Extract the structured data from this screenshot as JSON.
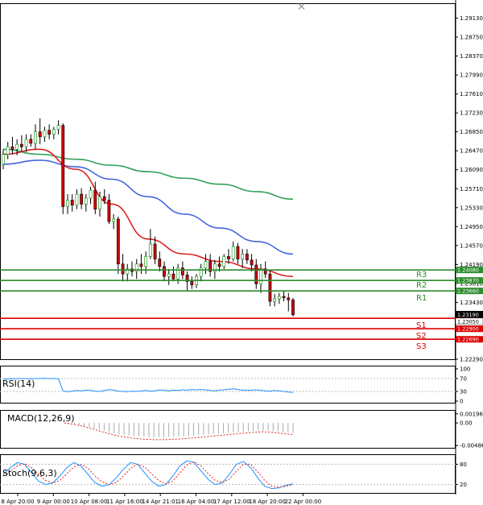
{
  "chart_data": {
    "type": "candlestick",
    "instrument_panel": {
      "price_axis_ticks": [
        "1.29130",
        "1.28750",
        "1.28370",
        "1.27990",
        "1.27610",
        "1.27230",
        "1.26850",
        "1.26470",
        "1.26090",
        "1.25710",
        "1.25330",
        "1.24950",
        "1.24570",
        "1.24190",
        "1.23810",
        "1.23430",
        "1.23050",
        "1.22670",
        "1.22290"
      ],
      "ylim": [
        1.2229,
        1.293
      ],
      "x_tick_labels": [
        "8 Apr 20:00",
        "9 Apr 00:00",
        "10 Apr 08:00",
        "11 Apr 16:00",
        "14 Apr 21:01",
        "16 Apr 04:00",
        "17 Apr 12:00",
        "18 Apr 20:00",
        "22 Apr 00:00"
      ],
      "candles": [
        {
          "o": 1.262,
          "h": 1.265,
          "l": 1.261,
          "c": 1.264
        },
        {
          "o": 1.264,
          "h": 1.2665,
          "l": 1.263,
          "c": 1.2655
        },
        {
          "o": 1.2655,
          "h": 1.2675,
          "l": 1.264,
          "c": 1.265
        },
        {
          "o": 1.265,
          "h": 1.267,
          "l": 1.2638,
          "c": 1.266
        },
        {
          "o": 1.266,
          "h": 1.2678,
          "l": 1.2645,
          "c": 1.2655
        },
        {
          "o": 1.2655,
          "h": 1.268,
          "l": 1.2645,
          "c": 1.267
        },
        {
          "o": 1.267,
          "h": 1.268,
          "l": 1.2655,
          "c": 1.2662
        },
        {
          "o": 1.2662,
          "h": 1.27,
          "l": 1.265,
          "c": 1.2685
        },
        {
          "o": 1.2685,
          "h": 1.2712,
          "l": 1.266,
          "c": 1.2675
        },
        {
          "o": 1.2675,
          "h": 1.2695,
          "l": 1.2665,
          "c": 1.2688
        },
        {
          "o": 1.2688,
          "h": 1.27,
          "l": 1.267,
          "c": 1.268
        },
        {
          "o": 1.268,
          "h": 1.2695,
          "l": 1.267,
          "c": 1.269
        },
        {
          "o": 1.269,
          "h": 1.2708,
          "l": 1.268,
          "c": 1.2698
        },
        {
          "o": 1.2698,
          "h": 1.2702,
          "l": 1.252,
          "c": 1.2535
        },
        {
          "o": 1.2535,
          "h": 1.256,
          "l": 1.252,
          "c": 1.2548
        },
        {
          "o": 1.2548,
          "h": 1.256,
          "l": 1.2525,
          "c": 1.2538
        },
        {
          "o": 1.2538,
          "h": 1.257,
          "l": 1.253,
          "c": 1.256
        },
        {
          "o": 1.256,
          "h": 1.2572,
          "l": 1.253,
          "c": 1.254
        },
        {
          "o": 1.254,
          "h": 1.256,
          "l": 1.2525,
          "c": 1.2552
        },
        {
          "o": 1.2552,
          "h": 1.2575,
          "l": 1.254,
          "c": 1.2568
        },
        {
          "o": 1.2568,
          "h": 1.2585,
          "l": 1.252,
          "c": 1.253
        },
        {
          "o": 1.253,
          "h": 1.2565,
          "l": 1.2515,
          "c": 1.2555
        },
        {
          "o": 1.2555,
          "h": 1.257,
          "l": 1.254,
          "c": 1.2548
        },
        {
          "o": 1.2548,
          "h": 1.256,
          "l": 1.25,
          "c": 1.2505
        },
        {
          "o": 1.2505,
          "h": 1.252,
          "l": 1.249,
          "c": 1.251
        },
        {
          "o": 1.251,
          "h": 1.2515,
          "l": 1.24,
          "c": 1.242
        },
        {
          "o": 1.242,
          "h": 1.244,
          "l": 1.2385,
          "c": 1.24
        },
        {
          "o": 1.24,
          "h": 1.242,
          "l": 1.2385,
          "c": 1.241
        },
        {
          "o": 1.241,
          "h": 1.2425,
          "l": 1.2395,
          "c": 1.2405
        },
        {
          "o": 1.2405,
          "h": 1.243,
          "l": 1.239,
          "c": 1.242
        },
        {
          "o": 1.242,
          "h": 1.244,
          "l": 1.24,
          "c": 1.2415
        },
        {
          "o": 1.2415,
          "h": 1.2445,
          "l": 1.24,
          "c": 1.2435
        },
        {
          "o": 1.2435,
          "h": 1.249,
          "l": 1.243,
          "c": 1.246
        },
        {
          "o": 1.246,
          "h": 1.2475,
          "l": 1.242,
          "c": 1.243
        },
        {
          "o": 1.243,
          "h": 1.2445,
          "l": 1.2405,
          "c": 1.2415
        },
        {
          "o": 1.2415,
          "h": 1.2425,
          "l": 1.2385,
          "c": 1.2395
        },
        {
          "o": 1.2395,
          "h": 1.241,
          "l": 1.2378,
          "c": 1.24
        },
        {
          "o": 1.24,
          "h": 1.2415,
          "l": 1.2385,
          "c": 1.239
        },
        {
          "o": 1.239,
          "h": 1.242,
          "l": 1.238,
          "c": 1.2412
        },
        {
          "o": 1.2412,
          "h": 1.2425,
          "l": 1.239,
          "c": 1.2398
        },
        {
          "o": 1.2398,
          "h": 1.2405,
          "l": 1.2365,
          "c": 1.2385
        },
        {
          "o": 1.2385,
          "h": 1.2395,
          "l": 1.237,
          "c": 1.2378
        },
        {
          "o": 1.2378,
          "h": 1.24,
          "l": 1.2372,
          "c": 1.2395
        },
        {
          "o": 1.2395,
          "h": 1.242,
          "l": 1.2385,
          "c": 1.2412
        },
        {
          "o": 1.2412,
          "h": 1.244,
          "l": 1.24,
          "c": 1.2425
        },
        {
          "o": 1.2425,
          "h": 1.244,
          "l": 1.2395,
          "c": 1.2405
        },
        {
          "o": 1.2405,
          "h": 1.2428,
          "l": 1.239,
          "c": 1.242
        },
        {
          "o": 1.242,
          "h": 1.2435,
          "l": 1.2405,
          "c": 1.2415
        },
        {
          "o": 1.2415,
          "h": 1.244,
          "l": 1.241,
          "c": 1.2435
        },
        {
          "o": 1.2435,
          "h": 1.245,
          "l": 1.242,
          "c": 1.243
        },
        {
          "o": 1.243,
          "h": 1.2465,
          "l": 1.2425,
          "c": 1.2455
        },
        {
          "o": 1.2455,
          "h": 1.2462,
          "l": 1.242,
          "c": 1.243
        },
        {
          "o": 1.243,
          "h": 1.245,
          "l": 1.2412,
          "c": 1.244
        },
        {
          "o": 1.244,
          "h": 1.245,
          "l": 1.242,
          "c": 1.2428
        },
        {
          "o": 1.2428,
          "h": 1.244,
          "l": 1.2405,
          "c": 1.2418
        },
        {
          "o": 1.2418,
          "h": 1.243,
          "l": 1.237,
          "c": 1.238
        },
        {
          "o": 1.238,
          "h": 1.242,
          "l": 1.2362,
          "c": 1.241
        },
        {
          "o": 1.241,
          "h": 1.2425,
          "l": 1.2392,
          "c": 1.24
        },
        {
          "o": 1.24,
          "h": 1.2408,
          "l": 1.2335,
          "c": 1.2345
        },
        {
          "o": 1.2345,
          "h": 1.236,
          "l": 1.2335,
          "c": 1.235
        },
        {
          "o": 1.235,
          "h": 1.2362,
          "l": 1.234,
          "c": 1.2355
        },
        {
          "o": 1.2355,
          "h": 1.2365,
          "l": 1.2345,
          "c": 1.2352
        },
        {
          "o": 1.2352,
          "h": 1.2362,
          "l": 1.2325,
          "c": 1.2348
        },
        {
          "o": 1.2348,
          "h": 1.2352,
          "l": 1.2315,
          "c": 1.2318
        }
      ],
      "ma_slow": {
        "color": "#33a05a",
        "values": [
          1.265,
          1.264,
          1.263,
          1.2618,
          1.2605,
          1.2592,
          1.258,
          1.2565,
          1.255
        ]
      },
      "ma_mid": {
        "color": "#4466dd",
        "values": [
          1.262,
          1.2628,
          1.2615,
          1.259,
          1.2555,
          1.252,
          1.2492,
          1.2465,
          1.244
        ]
      },
      "ma_fast": {
        "color": "#dd2222",
        "values": [
          1.264,
          1.265,
          1.261,
          1.254,
          1.247,
          1.244,
          1.2425,
          1.241,
          1.2395
        ]
      },
      "levels": [
        {
          "label": "R3",
          "value": "1.24080",
          "color": "#2e8b2e"
        },
        {
          "label": "R2",
          "value": "1.23870",
          "color": "#2e8b2e"
        },
        {
          "label": "R1",
          "value": "1.23660",
          "color": "#2e8b2e"
        },
        {
          "label": "S1",
          "value": "1.23110",
          "color": "#dd0000"
        },
        {
          "label": "S2",
          "value": "1.22900",
          "color": "#dd0000"
        },
        {
          "label": "S3",
          "value": "1.22690",
          "color": "#dd0000"
        }
      ],
      "extra_axis_tags": [
        {
          "value": "1.23190",
          "color": "#000000"
        },
        {
          "value": "1.23050",
          "color": "#ffffff"
        }
      ]
    },
    "rsi_panel": {
      "label": "RSI(14)",
      "ticks": [
        "100",
        "70",
        "30",
        "0"
      ],
      "ylim": [
        0,
        100
      ],
      "values": [
        68,
        69,
        69,
        70,
        70,
        70,
        69,
        70,
        70,
        71,
        70,
        70,
        69,
        32,
        29,
        31,
        33,
        32,
        34,
        33,
        31,
        30,
        33,
        36,
        34,
        31,
        30,
        29,
        31,
        30,
        32,
        33,
        31,
        32,
        35,
        33,
        32,
        34,
        33,
        35,
        34,
        36,
        35,
        36,
        35,
        33,
        32,
        34,
        35,
        37,
        38,
        36,
        34,
        33,
        34,
        35,
        33,
        32,
        31,
        33,
        32,
        30,
        28,
        27
      ]
    },
    "macd_panel": {
      "label": "MACD(12,26,9)",
      "ticks": [
        "0.001963",
        "0.00",
        "-0.004861"
      ],
      "ylim": [
        -0.005,
        0.0021
      ],
      "signal_values": [
        0.0,
        -0.0003,
        -0.0008,
        -0.0014,
        -0.002,
        -0.0026,
        -0.003,
        -0.0033,
        -0.0035,
        -0.0036,
        -0.0036,
        -0.0035,
        -0.0034,
        -0.0032,
        -0.003,
        -0.0028,
        -0.0026,
        -0.0024,
        -0.0022,
        -0.002,
        -0.0019,
        -0.002,
        -0.0023,
        -0.0025
      ]
    },
    "stoch_panel": {
      "label": "Stoch(9,6,3)",
      "ticks": [
        "80",
        "20"
      ],
      "ylim": [
        0,
        100
      ],
      "main_values": [
        50,
        70,
        85,
        80,
        55,
        30,
        20,
        25,
        45,
        70,
        85,
        75,
        50,
        25,
        15,
        20,
        40,
        65,
        85,
        80,
        55,
        30,
        15,
        20,
        45,
        75,
        90,
        85,
        60,
        35,
        20,
        25,
        50,
        80,
        88,
        70,
        40,
        15,
        8,
        10,
        18,
        22
      ],
      "signal_values": [
        45,
        60,
        75,
        82,
        70,
        50,
        32,
        24,
        32,
        52,
        72,
        80,
        68,
        45,
        28,
        20,
        26,
        45,
        68,
        80,
        72,
        52,
        32,
        22,
        30,
        55,
        78,
        88,
        75,
        52,
        32,
        26,
        36,
        60,
        80,
        80,
        58,
        32,
        15,
        12,
        15,
        20
      ]
    }
  }
}
